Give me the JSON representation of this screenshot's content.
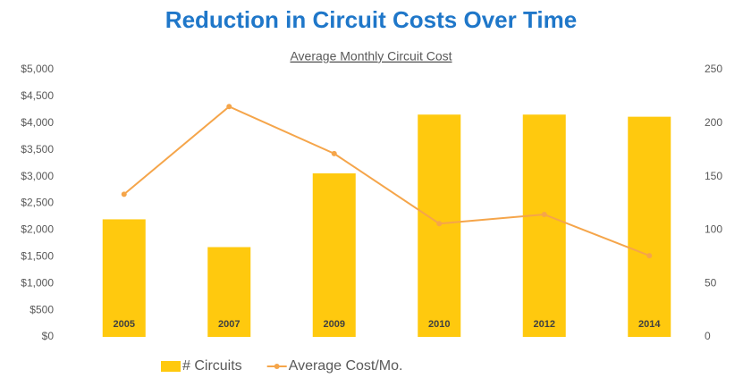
{
  "chart_data": {
    "type": "bar_line",
    "title": "Reduction in Circuit Costs Over Time",
    "subtitle": "Average Monthly Circuit Cost",
    "categories": [
      "2005",
      "2007",
      "2009",
      "2010",
      "2012",
      "2014"
    ],
    "series": [
      {
        "name": "# Circuits",
        "color": "#ffc90e",
        "type": "bar",
        "axis": "y2",
        "values": [
          110,
          84,
          153,
          208,
          208,
          206
        ]
      },
      {
        "name": "Average Cost/Mo.",
        "color": "#f5a54a",
        "type": "line",
        "axis": "y",
        "values": [
          2670,
          4310,
          3430,
          2120,
          2290,
          1520
        ]
      }
    ],
    "ylim": [
      0,
      5000
    ],
    "yticks": [
      {
        "value": 0,
        "label": "$0"
      },
      {
        "value": 500,
        "label": "$500"
      },
      {
        "value": 1000,
        "label": "$1,000"
      },
      {
        "value": 1500,
        "label": "$1,500"
      },
      {
        "value": 2000,
        "label": "$2,000"
      },
      {
        "value": 2500,
        "label": "$2,500"
      },
      {
        "value": 3000,
        "label": "$3,000"
      },
      {
        "value": 3500,
        "label": "$3,500"
      },
      {
        "value": 4000,
        "label": "$4,000"
      },
      {
        "value": 4500,
        "label": "$4,500"
      },
      {
        "value": 5000,
        "label": "$5,000"
      }
    ],
    "y2lim": [
      0,
      250
    ],
    "y2ticks": [
      0,
      50,
      100,
      150,
      200,
      250
    ],
    "grid": false,
    "legend": "bottom",
    "title_color": "#1f77c9"
  }
}
